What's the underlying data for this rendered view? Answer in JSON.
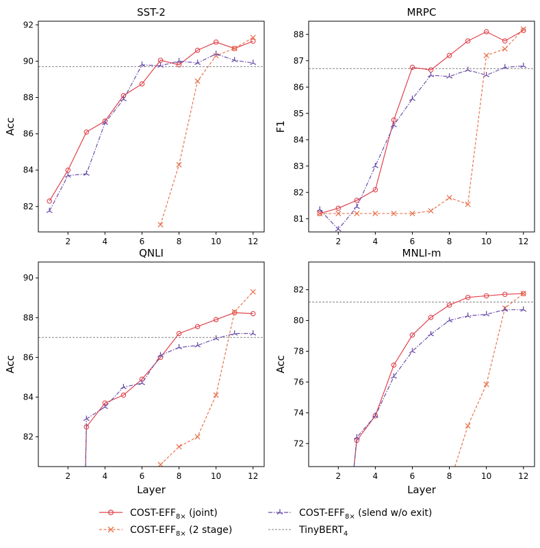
{
  "legend": {
    "joint": {
      "prefix": "COST-EFF",
      "sub": "8×",
      "suffix": " (joint)"
    },
    "two_stage": {
      "prefix": "COST-EFF",
      "sub": "8×",
      "suffix": " (2 stage)"
    },
    "slend": {
      "prefix": "COST-EFF",
      "sub": "8×",
      "suffix": " (slend w/o exit)"
    },
    "tinybert": {
      "prefix": "TinyBERT",
      "sub": "4",
      "suffix": ""
    }
  },
  "colors": {
    "joint": "#e0404a",
    "two_stage": "#e8734f",
    "slend": "#6a4ea8",
    "tinybert": "#808080"
  },
  "chart_data": [
    {
      "type": "line",
      "title": "SST-2",
      "xlabel": "",
      "ylabel": "Acc",
      "xlim": [
        0.4,
        12.6
      ],
      "ylim": [
        80.6,
        92.2
      ],
      "xticks": [
        2,
        4,
        6,
        8,
        10,
        12
      ],
      "yticks": [
        82,
        84,
        86,
        88,
        90,
        92
      ],
      "baseline": 89.7,
      "series": [
        {
          "key": "joint",
          "x": [
            1,
            2,
            3,
            4,
            5,
            6,
            7,
            8,
            9,
            10,
            11,
            12
          ],
          "y": [
            82.3,
            84.0,
            86.1,
            86.7,
            88.1,
            88.75,
            90.05,
            89.8,
            90.6,
            91.05,
            90.7,
            91.1
          ]
        },
        {
          "key": "two_stage",
          "x": [
            7,
            8,
            9,
            10,
            11,
            12
          ],
          "y": [
            81.0,
            84.3,
            88.9,
            90.3,
            90.7,
            91.3
          ]
        },
        {
          "key": "slend",
          "x": [
            1,
            2,
            3,
            4,
            5,
            6,
            7,
            8,
            9,
            10,
            11,
            12
          ],
          "y": [
            81.75,
            83.7,
            83.8,
            86.6,
            87.9,
            89.8,
            89.75,
            90.0,
            89.9,
            90.4,
            90.05,
            89.9
          ]
        }
      ]
    },
    {
      "type": "line",
      "title": "MRPC",
      "xlabel": "",
      "ylabel": "F1",
      "xlim": [
        0.4,
        12.6
      ],
      "ylim": [
        80.5,
        88.5
      ],
      "xticks": [
        2,
        4,
        6,
        8,
        10,
        12
      ],
      "yticks": [
        81,
        82,
        83,
        84,
        85,
        86,
        87,
        88
      ],
      "baseline": 86.7,
      "series": [
        {
          "key": "joint",
          "x": [
            1,
            2,
            3,
            4,
            5,
            6,
            7,
            8,
            9,
            10,
            11,
            12
          ],
          "y": [
            81.2,
            81.4,
            81.7,
            82.1,
            84.75,
            86.75,
            86.65,
            87.2,
            87.75,
            88.1,
            87.75,
            88.15
          ]
        },
        {
          "key": "two_stage",
          "x": [
            1,
            2,
            3,
            4,
            5,
            6,
            7,
            8,
            9,
            10,
            11,
            12
          ],
          "y": [
            81.2,
            81.2,
            81.2,
            81.2,
            81.2,
            81.2,
            81.3,
            81.8,
            81.55,
            87.2,
            87.45,
            88.2
          ]
        },
        {
          "key": "slend",
          "x": [
            1,
            2,
            3,
            4,
            5,
            6,
            7,
            8,
            9,
            10,
            11,
            12
          ],
          "y": [
            81.35,
            80.6,
            81.45,
            83.0,
            84.55,
            85.55,
            86.45,
            86.4,
            86.65,
            86.45,
            86.75,
            86.8
          ]
        }
      ]
    },
    {
      "type": "line",
      "title": "QNLI",
      "xlabel": "Layer",
      "ylabel": "Acc",
      "xlim": [
        0.4,
        12.6
      ],
      "ylim": [
        80.5,
        90.8
      ],
      "xticks": [
        2,
        4,
        6,
        8,
        10,
        12
      ],
      "yticks": [
        82,
        84,
        86,
        88,
        90
      ],
      "baseline": 87.0,
      "series": [
        {
          "key": "joint",
          "x": [
            2.95,
            3,
            4,
            5,
            6,
            7,
            8,
            9,
            10,
            11,
            12
          ],
          "y": [
            80.5,
            82.5,
            83.7,
            84.1,
            84.9,
            86.0,
            87.2,
            87.55,
            87.9,
            88.25,
            88.2
          ]
        },
        {
          "key": "two_stage",
          "x": [
            7,
            8,
            9,
            10,
            11,
            12
          ],
          "y": [
            80.6,
            81.5,
            82.0,
            84.1,
            88.3,
            89.3
          ]
        },
        {
          "key": "slend",
          "x": [
            2.95,
            3,
            4,
            5,
            6,
            7,
            8,
            9,
            10,
            11,
            12
          ],
          "y": [
            80.5,
            82.9,
            83.5,
            84.5,
            84.7,
            86.1,
            86.5,
            86.6,
            86.95,
            87.2,
            87.2
          ]
        }
      ]
    },
    {
      "type": "line",
      "title": "MNLI-m",
      "xlabel": "Layer",
      "ylabel": "Acc",
      "xlim": [
        0.4,
        12.6
      ],
      "ylim": [
        70.5,
        83.8
      ],
      "xticks": [
        2,
        4,
        6,
        8,
        10,
        12
      ],
      "yticks": [
        72,
        74,
        76,
        78,
        80,
        82
      ],
      "baseline": 81.2,
      "series": [
        {
          "key": "joint",
          "x": [
            2.85,
            3,
            4,
            5,
            6,
            7,
            8,
            9,
            10,
            11,
            12
          ],
          "y": [
            70.5,
            72.2,
            73.8,
            77.1,
            79.05,
            80.2,
            81.0,
            81.5,
            81.6,
            81.7,
            81.75
          ]
        },
        {
          "key": "two_stage",
          "x": [
            8.3,
            9,
            10,
            11,
            12
          ],
          "y": [
            70.5,
            73.15,
            75.85,
            80.8,
            81.75
          ]
        },
        {
          "key": "slend",
          "x": [
            2.85,
            3,
            4,
            5,
            6,
            7,
            8,
            9,
            10,
            11,
            12
          ],
          "y": [
            70.5,
            72.4,
            73.8,
            76.35,
            78.0,
            79.1,
            80.0,
            80.3,
            80.4,
            80.7,
            80.7
          ]
        }
      ]
    }
  ]
}
